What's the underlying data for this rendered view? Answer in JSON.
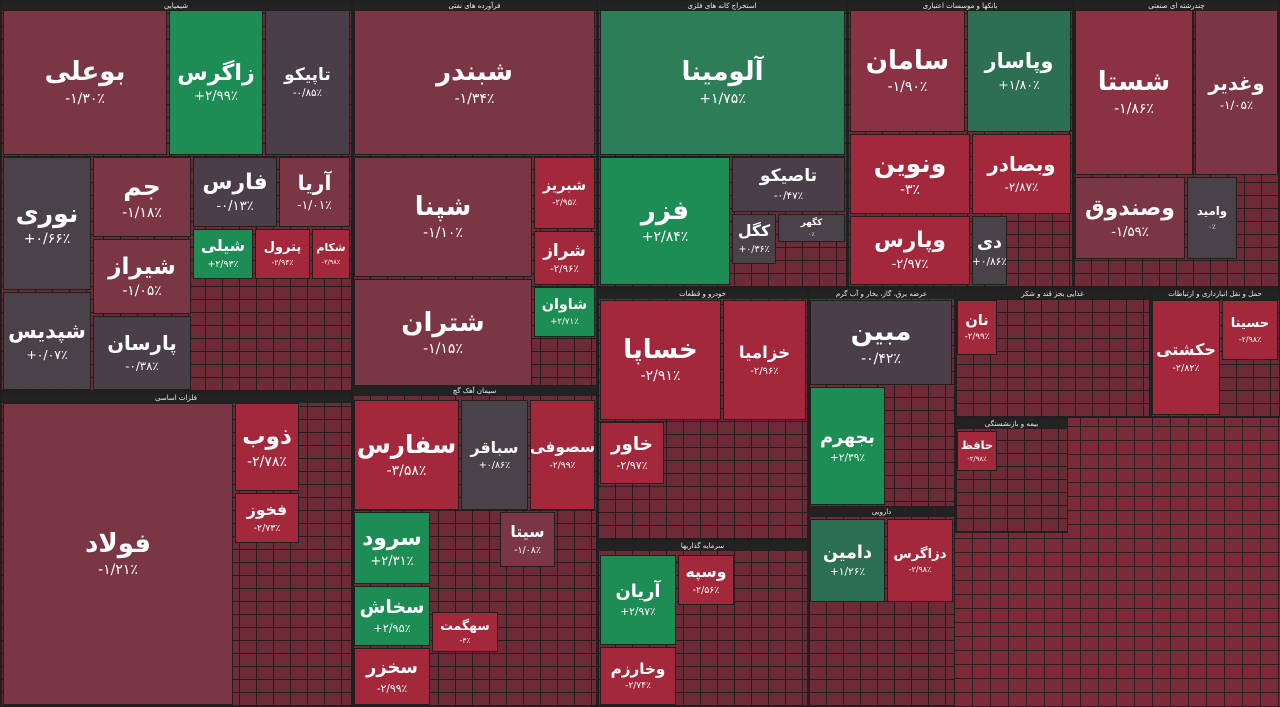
{
  "sectors": [
    {
      "title": "شیمیایی",
      "tiles": [
        {
          "name": "بوعلی",
          "change": "-۱/۳۰٪",
          "color": "#7b3646"
        },
        {
          "name": "زاگرس",
          "change": "+۲/۹۹٪",
          "color": "#1d8c55"
        },
        {
          "name": "تاپیکو",
          "change": "-۰/۸۵٪",
          "color": "#4a3f48"
        },
        {
          "name": "نوری",
          "change": "+۰/۶۶٪",
          "color": "#4a4249"
        },
        {
          "name": "جم",
          "change": "-۱/۱۸٪",
          "color": "#7b3646"
        },
        {
          "name": "فارس",
          "change": "-۰/۱۳٪",
          "color": "#4a3f48"
        },
        {
          "name": "آریا",
          "change": "-۱/۰۱٪",
          "color": "#7b3646"
        },
        {
          "name": "شیراز",
          "change": "-۱/۰۵٪",
          "color": "#7b3646"
        },
        {
          "name": "شیلی",
          "change": "+۲/۹۳٪",
          "color": "#1d8c55"
        },
        {
          "name": "پترول",
          "change": "-۲/۹۴٪",
          "color": "#a3283b"
        },
        {
          "name": "شکام",
          "change": "-۲/۹۸٪",
          "color": "#a3283b"
        },
        {
          "name": "شپدیس",
          "change": "+۰/۰۷٪",
          "color": "#4a4249"
        },
        {
          "name": "پارسان",
          "change": "-۰/۳۸٪",
          "color": "#4a3f48"
        }
      ]
    },
    {
      "title": "فرآورده های نفتی",
      "tiles": [
        {
          "name": "شبندر",
          "change": "-۱/۳۴٪",
          "color": "#7b3646"
        },
        {
          "name": "شپنا",
          "change": "-۱/۱۰٪",
          "color": "#7b3646"
        },
        {
          "name": "شتران",
          "change": "-۱/۱۵٪",
          "color": "#7b3646"
        },
        {
          "name": "شبریز",
          "change": "-۲/۹۵٪",
          "color": "#a3283b"
        },
        {
          "name": "شراز",
          "change": "-۲/۹۶٪",
          "color": "#a3283b"
        },
        {
          "name": "شاوان",
          "change": "+۲/۷۱٪",
          "color": "#1d8c55"
        }
      ]
    },
    {
      "title": "استخراج کانه های فلزی",
      "tiles": [
        {
          "name": "آلومینا",
          "change": "+۱/۷۵٪",
          "color": "#2d7d58"
        },
        {
          "name": "فزر",
          "change": "+۲/۸۴٪",
          "color": "#1d8c55"
        },
        {
          "name": "تاصیکو",
          "change": "-۰/۴۷٪",
          "color": "#4a3f48"
        },
        {
          "name": "کگل",
          "change": "+۰/۳۶٪",
          "color": "#4a4249"
        },
        {
          "name": "کگهر",
          "change": "۰٪",
          "color": "#4a4249"
        }
      ]
    },
    {
      "title": "بانکها و موسسات اعتباری",
      "tiles": [
        {
          "name": "سامان",
          "change": "-۱/۹۰٪",
          "color": "#8a3143"
        },
        {
          "name": "وپاسار",
          "change": "+۱/۸۰٪",
          "color": "#2d6f52"
        },
        {
          "name": "ونوین",
          "change": "-۳٪",
          "color": "#a3283b"
        },
        {
          "name": "وبصادر",
          "change": "-۲/۸۷٪",
          "color": "#a3283b"
        },
        {
          "name": "وپارس",
          "change": "-۲/۹۷٪",
          "color": "#a3283b"
        },
        {
          "name": "دی",
          "change": "+۰/۸۶٪",
          "color": "#4a4249"
        }
      ]
    },
    {
      "title": "چندرشته ای صنعتی",
      "tiles": [
        {
          "name": "شستا",
          "change": "-۱/۸۶٪",
          "color": "#8a3143"
        },
        {
          "name": "وغدیر",
          "change": "-۱/۰۵٪",
          "color": "#7b3646"
        },
        {
          "name": "وصندوق",
          "change": "-۱/۵۹٪",
          "color": "#7b3646"
        },
        {
          "name": "وامید",
          "change": "۰٪",
          "color": "#4a4249"
        }
      ]
    },
    {
      "title": "فلزات اساسی",
      "tiles": [
        {
          "name": "فولاد",
          "change": "-۱/۲۱٪",
          "color": "#7b3646"
        },
        {
          "name": "ذوب",
          "change": "-۲/۷۸٪",
          "color": "#a3283b"
        },
        {
          "name": "فخوز",
          "change": "-۲/۷۳٪",
          "color": "#a3283b"
        }
      ]
    },
    {
      "title": "سیمان آهک گچ",
      "tiles": [
        {
          "name": "سفارس",
          "change": "-۳/۵۸٪",
          "color": "#a3283b"
        },
        {
          "name": "سباقر",
          "change": "+۰/۸۶٪",
          "color": "#4a4249"
        },
        {
          "name": "سصوفی",
          "change": "-۲/۹۹٪",
          "color": "#a3283b"
        },
        {
          "name": "سرود",
          "change": "+۲/۳۱٪",
          "color": "#1d8c55"
        },
        {
          "name": "سخاش",
          "change": "+۲/۹۵٪",
          "color": "#1d8c55"
        },
        {
          "name": "سخزر",
          "change": "-۲/۹۹٪",
          "color": "#a3283b"
        },
        {
          "name": "سیتا",
          "change": "-۱/۰۸٪",
          "color": "#7b3646"
        },
        {
          "name": "سهگمت",
          "change": "-۳٪",
          "color": "#a3283b"
        }
      ]
    },
    {
      "title": "خودرو و قطعات",
      "tiles": [
        {
          "name": "خساپا",
          "change": "-۲/۹۱٪",
          "color": "#a3283b"
        },
        {
          "name": "خزامیا",
          "change": "-۲/۹۶٪",
          "color": "#a3283b"
        },
        {
          "name": "خاور",
          "change": "-۲/۹۷٪",
          "color": "#a3283b"
        }
      ]
    },
    {
      "title": "عرضه برق، گاز، بخار و آب گرم",
      "tiles": [
        {
          "name": "مبین",
          "change": "-۰/۴۲٪",
          "color": "#4a3f48"
        },
        {
          "name": "بجهرم",
          "change": "+۲/۳۹٪",
          "color": "#1d8c55"
        }
      ]
    },
    {
      "title": "دارویی",
      "tiles": [
        {
          "name": "دامین",
          "change": "+۱/۲۶٪",
          "color": "#2d6f52"
        },
        {
          "name": "دزاگرس",
          "change": "-۲/۹۸٪",
          "color": "#a3283b"
        }
      ]
    },
    {
      "title": "سرمایه گذاریها",
      "tiles": [
        {
          "name": "آریان",
          "change": "+۲/۹۷٪",
          "color": "#1d8c55"
        },
        {
          "name": "وخارزم",
          "change": "-۲/۷۴٪",
          "color": "#a3283b"
        },
        {
          "name": "وسپه",
          "change": "-۲/۵۶٪",
          "color": "#a3283b"
        }
      ]
    },
    {
      "title": "غذایی بجز قند و شکر",
      "tiles": [
        {
          "name": "نان",
          "change": "-۲/۹۹٪",
          "color": "#a3283b"
        }
      ]
    },
    {
      "title": "حمل و نقل انبارداری و ارتباطات",
      "tiles": [
        {
          "name": "حکشتی",
          "change": "-۲/۸۲٪",
          "color": "#a3283b"
        },
        {
          "name": "حسینا",
          "change": "-۲/۹۸٪",
          "color": "#a3283b"
        }
      ]
    },
    {
      "title": "بیمه و بازنشستگی",
      "tiles": [
        {
          "name": "حافظ",
          "change": "-۲/۹۸٪",
          "color": "#a3283b"
        }
      ]
    }
  ]
}
